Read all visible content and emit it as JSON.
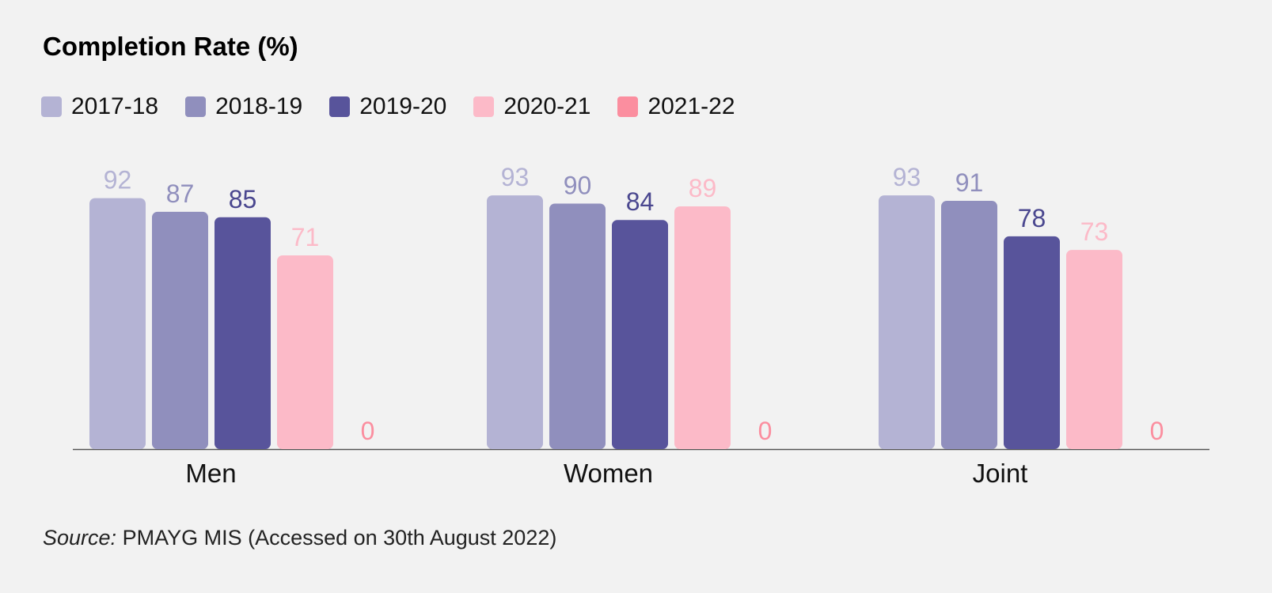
{
  "title": "Completion Rate (%)",
  "source": {
    "prefix": "Source:",
    "text": " PMAYG MIS (Accessed on 30th August 2022)"
  },
  "chart_data": {
    "type": "bar",
    "title": "Completion Rate (%)",
    "categories": [
      "Men",
      "Women",
      "Joint"
    ],
    "series": [
      {
        "name": "2017-18",
        "color": "#b4b3d4",
        "values": [
          92,
          93,
          93
        ]
      },
      {
        "name": "2018-19",
        "color": "#908fbd",
        "values": [
          87,
          90,
          91
        ]
      },
      {
        "name": "2019-20",
        "color": "#58549b",
        "values": [
          85,
          84,
          78
        ]
      },
      {
        "name": "2020-21",
        "color": "#fcbac8",
        "values": [
          71,
          89,
          73
        ]
      },
      {
        "name": "2021-22",
        "color": "#fb8e9f",
        "values": [
          0,
          0,
          0
        ]
      }
    ],
    "label_colors": [
      "#b4b3d4",
      "#908fbd",
      "#4a478f",
      "#fcbac8",
      "#fb8e9f"
    ],
    "ylim": [
      0,
      100
    ],
    "grid": false,
    "legend": "top-left"
  }
}
